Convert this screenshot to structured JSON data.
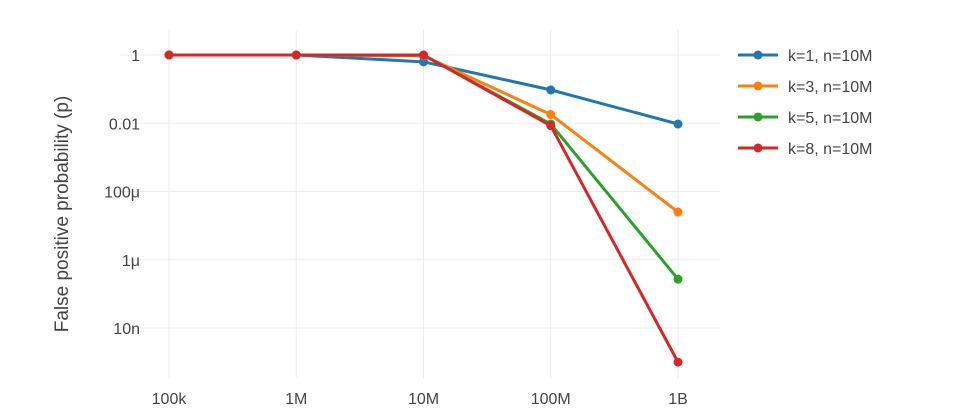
{
  "chart_data": {
    "type": "line",
    "title": "",
    "xlabel": "",
    "ylabel": "False positive probability (p)",
    "x_scale": "log",
    "y_scale": "log",
    "x": [
      100000,
      1000000,
      10000000,
      100000000,
      1000000000
    ],
    "x_tick_labels": [
      "100k",
      "1M",
      "10M",
      "100M",
      "1B"
    ],
    "y_ticks": [
      1,
      0.01,
      0.0001,
      1e-06,
      1e-08
    ],
    "y_tick_labels": [
      "1",
      "0.01",
      "100μ",
      "1μ",
      "10n"
    ],
    "grid": true,
    "legend_position": "top-right",
    "series": [
      {
        "name": "k=1, n=10M",
        "color": "#1f77b4",
        "values": [
          1,
          1,
          0.63,
          0.095,
          0.0095
        ]
      },
      {
        "name": "k=3, n=10M",
        "color": "#ff7f0e",
        "values": [
          1,
          1,
          0.95,
          0.018,
          2.5e-05
        ]
      },
      {
        "name": "k=5, n=10M",
        "color": "#2ca02c",
        "values": [
          1,
          1,
          0.99,
          0.0095,
          2.7e-07
        ]
      },
      {
        "name": "k=8, n=10M",
        "color": "#d62728",
        "values": [
          1,
          1,
          1,
          0.0085,
          1e-09
        ]
      }
    ]
  }
}
